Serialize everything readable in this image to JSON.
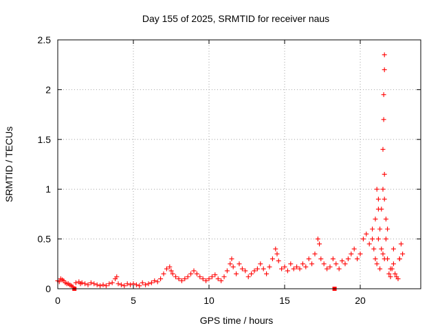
{
  "chart_data": {
    "type": "scatter",
    "title": "Day 155 of 2025, SRMTID for receiver naus",
    "xlabel": "GPS time / hours",
    "ylabel": "SRMTID / TECUs",
    "xlim": [
      0,
      24
    ],
    "ylim": [
      0,
      2.5
    ],
    "x_ticks": [
      0,
      5,
      10,
      15,
      20
    ],
    "x_tick_labels": [
      "0",
      "5",
      "10",
      "15",
      "20"
    ],
    "y_ticks": [
      0,
      0.5,
      1,
      1.5,
      2,
      2.5
    ],
    "y_tick_labels": [
      "0",
      "0.5",
      "1",
      "1.5",
      "2",
      "2.5"
    ],
    "grid": true,
    "legend": "none",
    "marker": "plus",
    "color": "#ff0000",
    "series": [
      {
        "name": "SRMTID",
        "x": [
          0.0,
          0.1,
          0.2,
          0.3,
          0.4,
          0.5,
          0.6,
          0.7,
          0.8,
          0.9,
          1.0,
          1.2,
          1.4,
          1.5,
          1.6,
          1.8,
          2.0,
          2.2,
          2.4,
          2.6,
          2.8,
          3.0,
          3.2,
          3.4,
          3.6,
          3.8,
          3.9,
          4.0,
          4.2,
          4.4,
          4.6,
          4.8,
          5.0,
          5.2,
          5.4,
          5.6,
          5.8,
          6.0,
          6.2,
          6.4,
          6.6,
          6.8,
          7.0,
          7.2,
          7.4,
          7.5,
          7.6,
          7.8,
          8.0,
          8.2,
          8.4,
          8.6,
          8.8,
          9.0,
          9.2,
          9.4,
          9.6,
          9.8,
          10.0,
          10.2,
          10.4,
          10.6,
          10.8,
          11.0,
          11.2,
          11.4,
          11.5,
          11.6,
          11.8,
          12.0,
          12.2,
          12.4,
          12.6,
          12.8,
          13.0,
          13.2,
          13.4,
          13.6,
          13.8,
          14.0,
          14.2,
          14.4,
          14.5,
          14.6,
          14.8,
          15.0,
          15.2,
          15.4,
          15.6,
          15.8,
          16.0,
          16.2,
          16.4,
          16.6,
          16.8,
          17.0,
          17.2,
          17.3,
          17.4,
          17.6,
          17.8,
          18.0,
          18.2,
          18.4,
          18.6,
          18.8,
          19.0,
          19.2,
          19.4,
          19.6,
          19.8,
          20.0,
          20.2,
          20.4,
          20.6,
          20.8,
          21.0,
          21.1,
          21.2,
          21.3,
          21.4,
          21.5,
          21.5,
          21.55,
          21.55,
          21.6,
          21.6,
          21.6,
          21.7,
          21.8,
          21.9,
          22.0,
          22.1,
          22.2,
          22.3,
          22.4,
          22.5,
          22.6,
          22.7,
          22.8,
          21.0,
          21.2,
          21.4,
          21.6,
          21.8,
          21.1,
          21.3,
          21.5,
          21.7,
          21.2,
          21.6,
          20.8,
          20.9,
          22.0,
          22.2,
          22.6
        ],
        "y": [
          0.08,
          0.07,
          0.1,
          0.09,
          0.08,
          0.06,
          0.05,
          0.05,
          0.04,
          0.03,
          0.02,
          0.06,
          0.07,
          0.05,
          0.06,
          0.05,
          0.04,
          0.06,
          0.05,
          0.04,
          0.03,
          0.04,
          0.03,
          0.05,
          0.06,
          0.1,
          0.12,
          0.05,
          0.04,
          0.03,
          0.05,
          0.04,
          0.05,
          0.04,
          0.03,
          0.06,
          0.04,
          0.05,
          0.06,
          0.08,
          0.07,
          0.1,
          0.15,
          0.2,
          0.22,
          0.18,
          0.15,
          0.12,
          0.1,
          0.08,
          0.1,
          0.12,
          0.15,
          0.18,
          0.15,
          0.12,
          0.1,
          0.08,
          0.1,
          0.12,
          0.14,
          0.1,
          0.08,
          0.12,
          0.18,
          0.25,
          0.3,
          0.22,
          0.15,
          0.25,
          0.2,
          0.18,
          0.12,
          0.15,
          0.18,
          0.2,
          0.25,
          0.2,
          0.15,
          0.22,
          0.3,
          0.4,
          0.35,
          0.28,
          0.2,
          0.22,
          0.18,
          0.25,
          0.2,
          0.22,
          0.2,
          0.25,
          0.22,
          0.3,
          0.25,
          0.35,
          0.5,
          0.45,
          0.3,
          0.25,
          0.2,
          0.22,
          0.3,
          0.25,
          0.2,
          0.28,
          0.25,
          0.3,
          0.35,
          0.4,
          0.3,
          0.35,
          0.5,
          0.55,
          0.45,
          0.6,
          0.7,
          1.0,
          0.9,
          0.6,
          0.8,
          1.0,
          1.4,
          1.7,
          1.95,
          2.2,
          2.35,
          1.15,
          0.7,
          0.3,
          0.15,
          0.12,
          0.2,
          0.4,
          0.15,
          0.12,
          0.1,
          0.3,
          0.45,
          0.35,
          0.3,
          0.5,
          0.4,
          0.3,
          0.6,
          0.25,
          0.2,
          0.35,
          0.5,
          0.8,
          0.9,
          0.5,
          0.4,
          0.2,
          0.25,
          0.3
        ]
      }
    ],
    "bottom_marks": {
      "x": [
        1.1,
        18.3
      ],
      "y": [
        0,
        0
      ]
    }
  }
}
